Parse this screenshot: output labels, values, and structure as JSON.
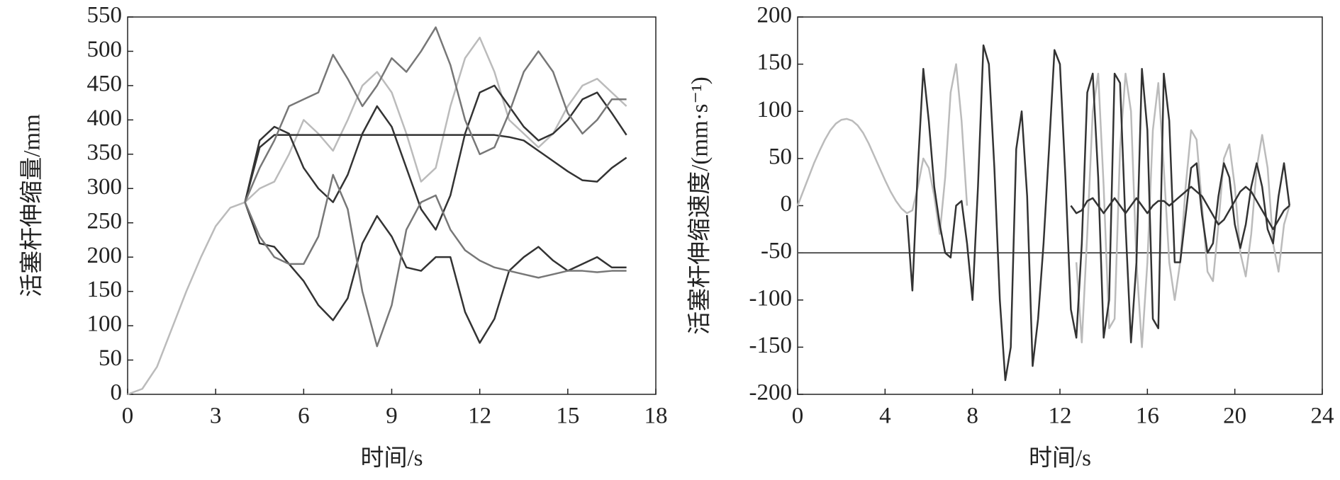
{
  "chart_data": [
    {
      "type": "line",
      "ylabel": "活塞杆伸缩量/mm",
      "xlabel": "时间/s",
      "xlim": [
        0,
        18
      ],
      "xticks": [
        0,
        3,
        6,
        9,
        12,
        15,
        18
      ],
      "ylim": [
        0,
        550
      ],
      "yticks": [
        0,
        50,
        100,
        150,
        200,
        250,
        300,
        350,
        400,
        450,
        500,
        550
      ],
      "x": [
        0,
        0.5,
        1,
        1.5,
        2,
        2.5,
        3,
        3.5,
        4,
        4.5,
        5,
        5.5,
        6,
        6.5,
        7,
        7.5,
        8,
        8.5,
        9,
        9.5,
        10,
        10.5,
        11,
        11.5,
        12,
        12.5,
        13,
        13.5,
        14,
        14.5,
        15,
        15.5,
        16,
        16.5,
        17
      ],
      "series": [
        {
          "color": "#bbbbbb",
          "values": [
            0,
            8,
            40,
            95,
            150,
            200,
            245,
            272,
            280,
            300,
            310,
            350,
            400,
            380,
            355,
            400,
            450,
            470,
            440,
            380,
            310,
            330,
            420,
            490,
            520,
            470,
            400,
            380,
            360,
            380,
            420,
            450,
            460,
            440,
            420
          ]
        },
        {
          "color": "#333333",
          "values": [
            null,
            null,
            null,
            null,
            null,
            null,
            null,
            null,
            280,
            370,
            390,
            380,
            330,
            300,
            280,
            320,
            380,
            420,
            390,
            330,
            270,
            240,
            290,
            380,
            440,
            450,
            420,
            390,
            370,
            380,
            400,
            430,
            440,
            410,
            378
          ]
        },
        {
          "color": "#333333",
          "values": [
            null,
            null,
            null,
            null,
            null,
            null,
            null,
            null,
            280,
            360,
            378,
            378,
            378,
            378,
            378,
            378,
            378,
            378,
            378,
            378,
            378,
            378,
            378,
            378,
            378,
            378,
            375,
            370,
            355,
            340,
            325,
            312,
            310,
            330,
            345
          ]
        },
        {
          "color": "#777777",
          "values": [
            null,
            null,
            null,
            null,
            null,
            null,
            null,
            null,
            280,
            330,
            370,
            420,
            430,
            440,
            495,
            460,
            420,
            450,
            490,
            470,
            500,
            535,
            480,
            400,
            350,
            360,
            410,
            470,
            500,
            470,
            410,
            380,
            400,
            430,
            430
          ]
        },
        {
          "color": "#333333",
          "values": [
            null,
            null,
            null,
            null,
            null,
            null,
            null,
            null,
            280,
            220,
            215,
            190,
            165,
            130,
            108,
            140,
            220,
            260,
            230,
            185,
            180,
            200,
            200,
            120,
            75,
            110,
            180,
            200,
            215,
            195,
            180,
            190,
            200,
            185,
            185
          ]
        },
        {
          "color": "#777777",
          "values": [
            null,
            null,
            null,
            null,
            null,
            null,
            null,
            null,
            280,
            230,
            200,
            190,
            190,
            230,
            320,
            270,
            150,
            70,
            130,
            240,
            280,
            290,
            240,
            210,
            195,
            185,
            180,
            175,
            170,
            175,
            180,
            180,
            178,
            180,
            180
          ]
        }
      ]
    },
    {
      "type": "line",
      "ylabel": "活塞杆伸缩速度/(mm·s⁻¹)",
      "xlabel": "时间/s",
      "xlim": [
        0,
        24
      ],
      "xticks": [
        0,
        4,
        8,
        12,
        16,
        20,
        24
      ],
      "ylim": [
        -200,
        200
      ],
      "yticks": [
        -200,
        -150,
        -100,
        -50,
        0,
        50,
        100,
        150,
        200
      ],
      "hline": -50,
      "x": [
        0,
        0.25,
        0.5,
        0.75,
        1,
        1.25,
        1.5,
        1.75,
        2,
        2.25,
        2.5,
        2.75,
        3,
        3.25,
        3.5,
        3.75,
        4,
        4.25,
        4.5,
        4.75,
        5,
        5.25,
        5.5,
        5.75,
        6,
        6.25,
        6.5,
        6.75,
        7,
        7.25,
        7.5,
        7.75,
        8,
        8.25,
        8.5,
        8.75,
        9,
        9.25,
        9.5,
        9.75,
        10,
        10.25,
        10.5,
        10.75,
        11,
        11.25,
        11.5,
        11.75,
        12,
        12.25,
        12.5,
        12.75,
        13,
        13.25,
        13.5,
        13.75,
        14,
        14.25,
        14.5,
        14.75,
        15,
        15.25,
        15.5,
        15.75,
        16,
        16.25,
        16.5,
        16.75,
        17,
        17.25,
        17.5,
        17.75,
        18,
        18.25,
        18.5,
        18.75,
        19,
        19.25,
        19.5,
        19.75,
        20,
        20.25,
        20.5,
        20.75,
        21,
        21.25,
        21.5,
        21.75,
        22,
        22.25,
        22.5
      ],
      "series": [
        {
          "color": "#bbbbbb",
          "values": [
            0,
            15,
            30,
            45,
            58,
            70,
            80,
            87,
            91,
            92,
            90,
            85,
            77,
            66,
            53,
            40,
            27,
            15,
            5,
            -3,
            -8,
            -5,
            20,
            50,
            40,
            10,
            -30,
            30,
            120,
            150,
            90,
            0,
            null,
            null,
            null,
            null,
            null,
            null,
            null,
            null,
            null,
            null,
            null,
            null,
            null,
            null,
            null,
            null,
            null,
            null,
            null,
            -60,
            -145,
            -30,
            100,
            140,
            20,
            -130,
            -120,
            60,
            140,
            100,
            -60,
            -150,
            -60,
            80,
            130,
            40,
            -60,
            -100,
            -60,
            20,
            80,
            70,
            0,
            -70,
            -80,
            -20,
            50,
            65,
            20,
            -50,
            -75,
            -30,
            40,
            75,
            40,
            -40,
            -70,
            -20,
            0
          ]
        },
        {
          "color": "#333333",
          "values": [
            null,
            null,
            null,
            null,
            null,
            null,
            null,
            null,
            null,
            null,
            null,
            null,
            null,
            null,
            null,
            null,
            null,
            null,
            null,
            null,
            -10,
            -90,
            40,
            145,
            90,
            20,
            -20,
            -50,
            -55,
            0,
            5,
            -40,
            -100,
            20,
            170,
            150,
            40,
            -100,
            -185,
            -150,
            60,
            100,
            10,
            -170,
            -120,
            -40,
            60,
            165,
            150,
            30,
            -110,
            -140,
            -40,
            120,
            140,
            30,
            -140,
            -100,
            140,
            130,
            -20,
            -145,
            -60,
            145,
            80,
            -120,
            -130,
            140,
            90,
            -60,
            -60,
            -10,
            40,
            45,
            -10,
            -50,
            -40,
            10,
            45,
            30,
            -20,
            -45,
            -20,
            20,
            45,
            20,
            -25,
            -40,
            10,
            45,
            0
          ]
        },
        {
          "color": "#333333",
          "values": [
            null,
            null,
            null,
            null,
            null,
            null,
            null,
            null,
            null,
            null,
            null,
            null,
            null,
            null,
            null,
            null,
            null,
            null,
            null,
            null,
            null,
            null,
            null,
            null,
            null,
            null,
            null,
            null,
            null,
            null,
            null,
            null,
            null,
            null,
            null,
            null,
            null,
            null,
            null,
            null,
            null,
            null,
            null,
            null,
            null,
            null,
            null,
            null,
            null,
            null,
            0,
            -8,
            -5,
            5,
            8,
            0,
            -8,
            0,
            8,
            0,
            -8,
            0,
            8,
            0,
            -8,
            0,
            5,
            5,
            0,
            5,
            10,
            15,
            20,
            15,
            10,
            0,
            -10,
            -20,
            -15,
            -5,
            5,
            15,
            20,
            15,
            5,
            -5,
            -15,
            -25,
            -15,
            -5,
            0
          ]
        }
      ]
    }
  ]
}
